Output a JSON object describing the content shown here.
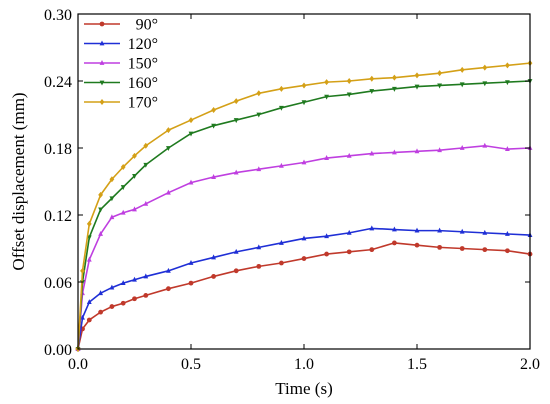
{
  "chart_data": {
    "type": "line",
    "title": "",
    "xlabel": "Time (s)",
    "ylabel": "Offset displacement (mm)",
    "xlim": [
      0,
      2.0
    ],
    "ylim": [
      0,
      0.3
    ],
    "xticks": [
      "0.0",
      "0.5",
      "1.0",
      "1.5",
      "2.0"
    ],
    "yticks": [
      "0.00",
      "0.06",
      "0.12",
      "0.18",
      "0.24",
      "0.30"
    ],
    "grid": false,
    "legend_position": "top-left",
    "series": [
      {
        "name": "90°",
        "color": "#c0392b",
        "marker": "circle",
        "points": [
          [
            0,
            0
          ],
          [
            0.02,
            0.018
          ],
          [
            0.05,
            0.026
          ],
          [
            0.1,
            0.033
          ],
          [
            0.15,
            0.038
          ],
          [
            0.2,
            0.041
          ],
          [
            0.25,
            0.045
          ],
          [
            0.3,
            0.048
          ],
          [
            0.4,
            0.054
          ],
          [
            0.5,
            0.059
          ],
          [
            0.6,
            0.065
          ],
          [
            0.7,
            0.07
          ],
          [
            0.8,
            0.074
          ],
          [
            0.9,
            0.077
          ],
          [
            1.0,
            0.081
          ],
          [
            1.1,
            0.085
          ],
          [
            1.2,
            0.087
          ],
          [
            1.3,
            0.089
          ],
          [
            1.4,
            0.095
          ],
          [
            1.5,
            0.093
          ],
          [
            1.6,
            0.091
          ],
          [
            1.7,
            0.09
          ],
          [
            1.8,
            0.089
          ],
          [
            1.9,
            0.088
          ],
          [
            2.0,
            0.085
          ]
        ]
      },
      {
        "name": "120°",
        "color": "#1f2fd6",
        "marker": "triangle",
        "points": [
          [
            0,
            0
          ],
          [
            0.02,
            0.028
          ],
          [
            0.05,
            0.042
          ],
          [
            0.1,
            0.05
          ],
          [
            0.15,
            0.055
          ],
          [
            0.2,
            0.059
          ],
          [
            0.25,
            0.062
          ],
          [
            0.3,
            0.065
          ],
          [
            0.4,
            0.07
          ],
          [
            0.5,
            0.077
          ],
          [
            0.6,
            0.082
          ],
          [
            0.7,
            0.087
          ],
          [
            0.8,
            0.091
          ],
          [
            0.9,
            0.095
          ],
          [
            1.0,
            0.099
          ],
          [
            1.1,
            0.101
          ],
          [
            1.2,
            0.104
          ],
          [
            1.3,
            0.108
          ],
          [
            1.4,
            0.107
          ],
          [
            1.5,
            0.106
          ],
          [
            1.6,
            0.106
          ],
          [
            1.7,
            0.105
          ],
          [
            1.8,
            0.104
          ],
          [
            1.9,
            0.103
          ],
          [
            2.0,
            0.102
          ]
        ]
      },
      {
        "name": "150°",
        "color": "#bf3fe0",
        "marker": "triangle",
        "points": [
          [
            0,
            0
          ],
          [
            0.02,
            0.05
          ],
          [
            0.05,
            0.08
          ],
          [
            0.1,
            0.103
          ],
          [
            0.15,
            0.118
          ],
          [
            0.2,
            0.122
          ],
          [
            0.25,
            0.125
          ],
          [
            0.3,
            0.13
          ],
          [
            0.4,
            0.14
          ],
          [
            0.5,
            0.149
          ],
          [
            0.6,
            0.154
          ],
          [
            0.7,
            0.158
          ],
          [
            0.8,
            0.161
          ],
          [
            0.9,
            0.164
          ],
          [
            1.0,
            0.167
          ],
          [
            1.1,
            0.171
          ],
          [
            1.2,
            0.173
          ],
          [
            1.3,
            0.175
          ],
          [
            1.4,
            0.176
          ],
          [
            1.5,
            0.177
          ],
          [
            1.6,
            0.178
          ],
          [
            1.7,
            0.18
          ],
          [
            1.8,
            0.182
          ],
          [
            1.9,
            0.179
          ],
          [
            2.0,
            0.18
          ]
        ]
      },
      {
        "name": "160°",
        "color": "#1f7a1f",
        "marker": "triangle-down",
        "points": [
          [
            0,
            0
          ],
          [
            0.02,
            0.06
          ],
          [
            0.05,
            0.1
          ],
          [
            0.1,
            0.125
          ],
          [
            0.15,
            0.135
          ],
          [
            0.2,
            0.145
          ],
          [
            0.25,
            0.155
          ],
          [
            0.3,
            0.165
          ],
          [
            0.4,
            0.18
          ],
          [
            0.5,
            0.193
          ],
          [
            0.6,
            0.2
          ],
          [
            0.7,
            0.205
          ],
          [
            0.8,
            0.21
          ],
          [
            0.9,
            0.216
          ],
          [
            1.0,
            0.221
          ],
          [
            1.1,
            0.226
          ],
          [
            1.2,
            0.228
          ],
          [
            1.3,
            0.231
          ],
          [
            1.4,
            0.233
          ],
          [
            1.5,
            0.235
          ],
          [
            1.6,
            0.236
          ],
          [
            1.7,
            0.237
          ],
          [
            1.8,
            0.238
          ],
          [
            1.9,
            0.239
          ],
          [
            2.0,
            0.24
          ]
        ]
      },
      {
        "name": "170°",
        "color": "#d4a017",
        "marker": "diamond",
        "points": [
          [
            0,
            0
          ],
          [
            0.02,
            0.07
          ],
          [
            0.05,
            0.112
          ],
          [
            0.1,
            0.138
          ],
          [
            0.15,
            0.152
          ],
          [
            0.2,
            0.163
          ],
          [
            0.25,
            0.173
          ],
          [
            0.3,
            0.182
          ],
          [
            0.4,
            0.196
          ],
          [
            0.5,
            0.205
          ],
          [
            0.6,
            0.214
          ],
          [
            0.7,
            0.222
          ],
          [
            0.8,
            0.229
          ],
          [
            0.9,
            0.233
          ],
          [
            1.0,
            0.236
          ],
          [
            1.1,
            0.239
          ],
          [
            1.2,
            0.24
          ],
          [
            1.3,
            0.242
          ],
          [
            1.4,
            0.243
          ],
          [
            1.5,
            0.245
          ],
          [
            1.6,
            0.247
          ],
          [
            1.7,
            0.25
          ],
          [
            1.8,
            0.252
          ],
          [
            1.9,
            0.254
          ],
          [
            2.0,
            0.256
          ]
        ]
      }
    ]
  }
}
